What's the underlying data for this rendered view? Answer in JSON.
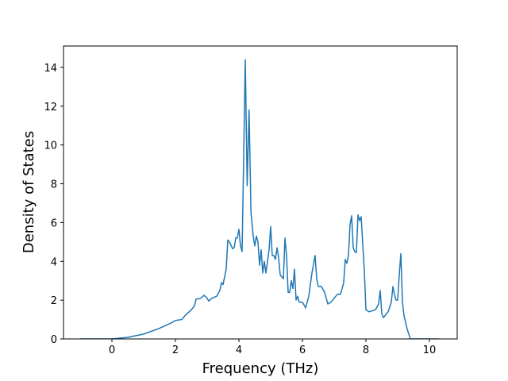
{
  "chart_data": {
    "type": "line",
    "xlabel": "Frequency (THz)",
    "ylabel": "Density of States",
    "xlim": [
      -1.525,
      10.875
    ],
    "ylim": [
      0,
      15.1
    ],
    "xticks": [
      0,
      2,
      4,
      6,
      8,
      10
    ],
    "yticks": [
      0,
      2,
      4,
      6,
      8,
      10,
      12,
      14
    ],
    "series": [
      {
        "color": "#1f77b4",
        "x": [
          -1,
          0,
          0.5,
          1,
          1.5,
          1.9,
          2.0,
          2.2,
          2.3,
          2.5,
          2.6,
          2.65,
          2.8,
          2.9,
          3.0,
          3.05,
          3.15,
          3.3,
          3.4,
          3.45,
          3.5,
          3.6,
          3.65,
          3.72,
          3.8,
          3.85,
          3.9,
          3.95,
          4.0,
          4.05,
          4.1,
          4.2,
          4.26,
          4.32,
          4.38,
          4.45,
          4.5,
          4.55,
          4.6,
          4.65,
          4.7,
          4.75,
          4.8,
          4.85,
          4.95,
          5.0,
          5.05,
          5.1,
          5.15,
          5.2,
          5.25,
          5.3,
          5.4,
          5.45,
          5.5,
          5.55,
          5.6,
          5.65,
          5.7,
          5.75,
          5.8,
          5.85,
          5.9,
          6.0,
          6.1,
          6.2,
          6.3,
          6.4,
          6.45,
          6.5,
          6.6,
          6.7,
          6.8,
          6.9,
          7.0,
          7.1,
          7.2,
          7.25,
          7.3,
          7.35,
          7.4,
          7.45,
          7.5,
          7.55,
          7.6,
          7.65,
          7.7,
          7.75,
          7.8,
          7.85,
          7.95,
          8.0,
          8.1,
          8.3,
          8.4,
          8.45,
          8.5,
          8.55,
          8.7,
          8.8,
          8.85,
          8.9,
          8.95,
          9.0,
          9.05,
          9.1,
          9.15,
          9.2,
          9.3,
          9.4,
          10.3
        ],
        "values": [
          0,
          0,
          0.08,
          0.25,
          0.55,
          0.85,
          0.95,
          1.0,
          1.2,
          1.5,
          1.7,
          2.05,
          2.1,
          2.25,
          2.1,
          1.95,
          2.1,
          2.2,
          2.5,
          2.9,
          2.8,
          3.6,
          5.1,
          4.95,
          4.65,
          4.7,
          5.2,
          5.2,
          5.65,
          4.8,
          4.5,
          14.4,
          7.9,
          11.8,
          6.5,
          5.3,
          4.8,
          5.3,
          5.0,
          3.8,
          4.6,
          3.4,
          4.0,
          3.4,
          4.6,
          5.8,
          4.3,
          4.3,
          4.1,
          4.7,
          4.2,
          3.3,
          3.1,
          5.2,
          4.3,
          2.4,
          2.4,
          3.0,
          2.6,
          3.6,
          2.0,
          2.2,
          1.9,
          1.9,
          1.6,
          2.2,
          3.4,
          4.3,
          3.1,
          2.7,
          2.7,
          2.4,
          1.8,
          1.9,
          2.1,
          2.3,
          2.3,
          2.6,
          2.9,
          4.1,
          3.9,
          4.3,
          5.9,
          6.35,
          4.7,
          4.5,
          4.45,
          6.4,
          6.1,
          6.3,
          3.5,
          1.5,
          1.4,
          1.5,
          1.8,
          2.5,
          1.3,
          1.1,
          1.4,
          1.9,
          2.7,
          2.3,
          2.0,
          2.0,
          3.3,
          4.4,
          1.9,
          1.2,
          0.5,
          0,
          0
        ]
      }
    ]
  }
}
